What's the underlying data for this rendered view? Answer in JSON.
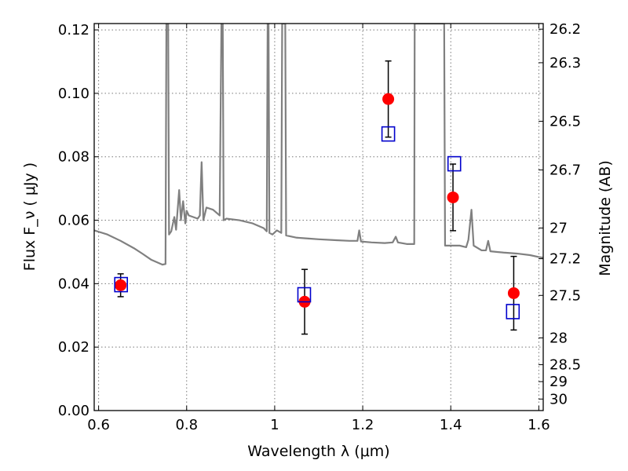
{
  "chart_data": {
    "type": "scatter",
    "title": "",
    "xlabel": "Wavelength  λ (μm)",
    "ylabel": "Flux  F_ν  ( μJy )",
    "ylabel_right": "Magnitude (AB)",
    "xlim": [
      0.59,
      1.61
    ],
    "ylim": [
      0.0,
      0.122
    ],
    "grid": true,
    "x_ticks": [
      {
        "value": 0.6,
        "label": "0.6"
      },
      {
        "value": 0.8,
        "label": "0.8"
      },
      {
        "value": 1.0,
        "label": "1"
      },
      {
        "value": 1.2,
        "label": "1.2"
      },
      {
        "value": 1.4,
        "label": "1.4"
      },
      {
        "value": 1.6,
        "label": "1.6"
      }
    ],
    "y_ticks": [
      {
        "value": 0.0,
        "label": "0.00"
      },
      {
        "value": 0.02,
        "label": "0.02"
      },
      {
        "value": 0.04,
        "label": "0.04"
      },
      {
        "value": 0.06,
        "label": "0.06"
      },
      {
        "value": 0.08,
        "label": "0.08"
      },
      {
        "value": 0.1,
        "label": "0.10"
      },
      {
        "value": 0.12,
        "label": "0.12"
      }
    ],
    "mag_ticks": [
      {
        "value": 26.2,
        "label": "26.2"
      },
      {
        "value": 26.3,
        "label": "26.3"
      },
      {
        "value": 26.5,
        "label": "26.5"
      },
      {
        "value": 26.7,
        "label": "26.7"
      },
      {
        "value": 27,
        "label": "27"
      },
      {
        "value": 27.2,
        "label": "27.2"
      },
      {
        "value": 27.5,
        "label": "27.5"
      },
      {
        "value": 28,
        "label": "28"
      },
      {
        "value": 28.5,
        "label": "28.5"
      },
      {
        "value": 29,
        "label": "29"
      },
      {
        "value": 30,
        "label": "30"
      }
    ],
    "series": [
      {
        "kind": "line",
        "color": "#808080",
        "points": [
          [
            0.59,
            0.0568
          ],
          [
            0.62,
            0.0555
          ],
          [
            0.65,
            0.0535
          ],
          [
            0.68,
            0.0512
          ],
          [
            0.7,
            0.0494
          ],
          [
            0.72,
            0.0475
          ],
          [
            0.745,
            0.046
          ],
          [
            0.752,
            0.0462
          ],
          [
            0.754,
            0.122
          ],
          [
            0.758,
            0.122
          ],
          [
            0.76,
            0.0555
          ],
          [
            0.765,
            0.0565
          ],
          [
            0.772,
            0.061
          ],
          [
            0.776,
            0.057
          ],
          [
            0.783,
            0.0695
          ],
          [
            0.787,
            0.06
          ],
          [
            0.792,
            0.066
          ],
          [
            0.797,
            0.059
          ],
          [
            0.8,
            0.063
          ],
          [
            0.805,
            0.0615
          ],
          [
            0.815,
            0.061
          ],
          [
            0.825,
            0.0605
          ],
          [
            0.83,
            0.0615
          ],
          [
            0.834,
            0.0783
          ],
          [
            0.838,
            0.06
          ],
          [
            0.845,
            0.064
          ],
          [
            0.86,
            0.0633
          ],
          [
            0.875,
            0.0615
          ],
          [
            0.879,
            0.122
          ],
          [
            0.882,
            0.122
          ],
          [
            0.884,
            0.06
          ],
          [
            0.89,
            0.0605
          ],
          [
            0.92,
            0.06
          ],
          [
            0.95,
            0.059
          ],
          [
            0.975,
            0.0575
          ],
          [
            0.982,
            0.0565
          ],
          [
            0.984,
            0.122
          ],
          [
            0.986,
            0.122
          ],
          [
            0.988,
            0.056
          ],
          [
            0.995,
            0.0555
          ],
          [
            1.005,
            0.0568
          ],
          [
            1.015,
            0.056
          ],
          [
            1.017,
            0.122
          ],
          [
            1.024,
            0.122
          ],
          [
            1.026,
            0.0552
          ],
          [
            1.05,
            0.0545
          ],
          [
            1.08,
            0.0542
          ],
          [
            1.1,
            0.054
          ],
          [
            1.14,
            0.0537
          ],
          [
            1.17,
            0.0535
          ],
          [
            1.188,
            0.0535
          ],
          [
            1.192,
            0.0568
          ],
          [
            1.196,
            0.0533
          ],
          [
            1.22,
            0.053
          ],
          [
            1.25,
            0.0528
          ],
          [
            1.268,
            0.053
          ],
          [
            1.275,
            0.0548
          ],
          [
            1.28,
            0.053
          ],
          [
            1.3,
            0.0525
          ],
          [
            1.317,
            0.0525
          ],
          [
            1.318,
            0.122
          ],
          [
            1.385,
            0.122
          ],
          [
            1.387,
            0.052
          ],
          [
            1.42,
            0.052
          ],
          [
            1.435,
            0.0515
          ],
          [
            1.44,
            0.0538
          ],
          [
            1.447,
            0.0633
          ],
          [
            1.452,
            0.052
          ],
          [
            1.47,
            0.0505
          ],
          [
            1.48,
            0.0505
          ],
          [
            1.485,
            0.0535
          ],
          [
            1.49,
            0.0502
          ],
          [
            1.52,
            0.0498
          ],
          [
            1.55,
            0.0495
          ],
          [
            1.58,
            0.049
          ],
          [
            1.6,
            0.0484
          ],
          [
            1.61,
            0.0482
          ]
        ]
      },
      {
        "kind": "errorbar",
        "color": "#ff0000",
        "points": [
          {
            "x": 0.65,
            "y": 0.0395,
            "err": 0.0036
          },
          {
            "x": 1.068,
            "y": 0.0343,
            "err": 0.0102
          },
          {
            "x": 1.258,
            "y": 0.0982,
            "err": 0.012
          },
          {
            "x": 1.405,
            "y": 0.0672,
            "err": 0.0105
          },
          {
            "x": 1.543,
            "y": 0.037,
            "err": 0.0116
          }
        ]
      },
      {
        "kind": "open-square",
        "color": "#0000cc",
        "points": [
          {
            "x": 0.651,
            "y": 0.0397
          },
          {
            "x": 1.067,
            "y": 0.0365
          },
          {
            "x": 1.258,
            "y": 0.0872
          },
          {
            "x": 1.408,
            "y": 0.0778
          },
          {
            "x": 1.541,
            "y": 0.0312
          }
        ]
      }
    ]
  }
}
